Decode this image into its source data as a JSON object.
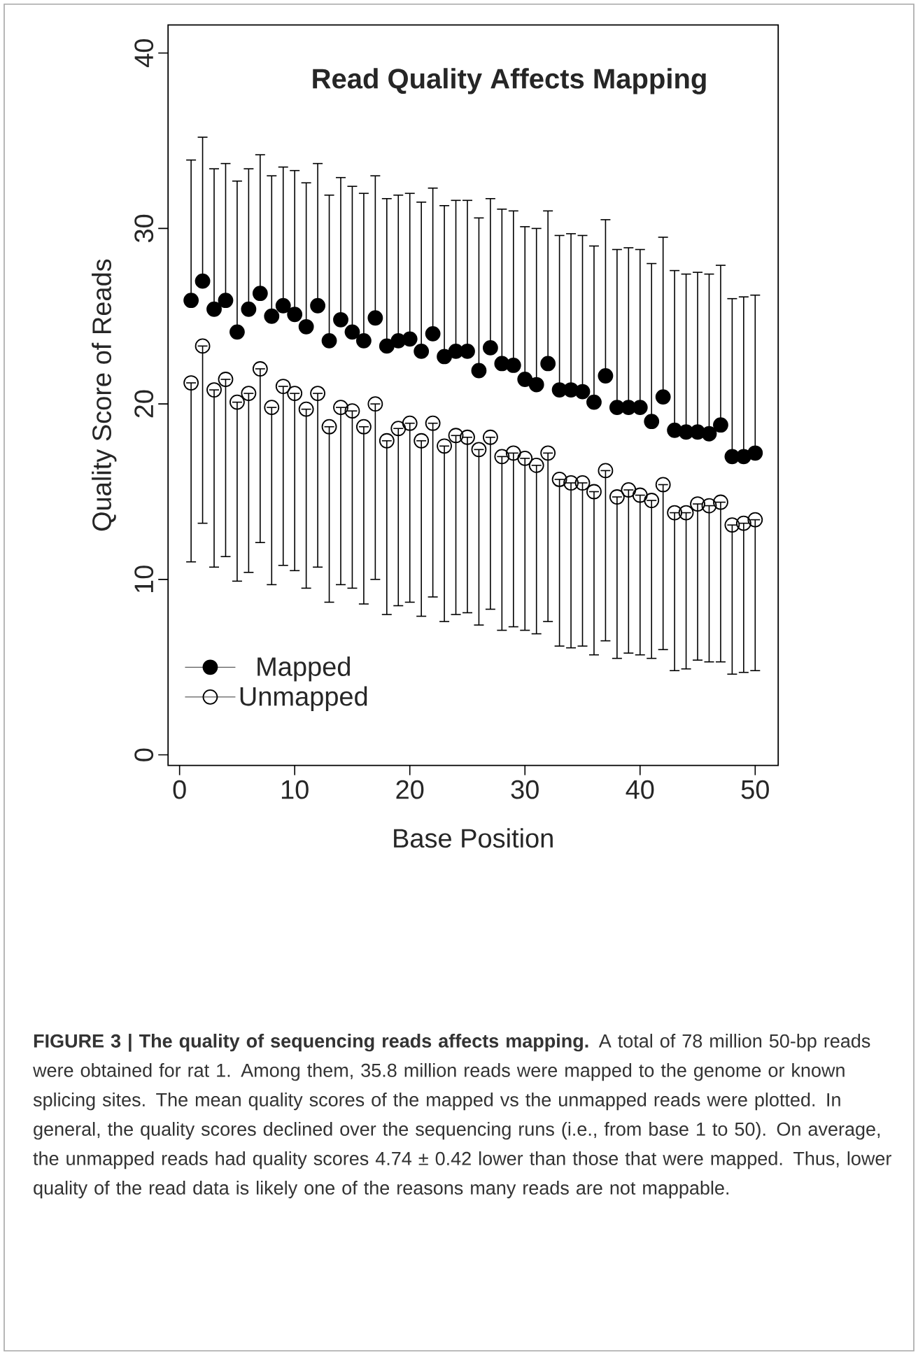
{
  "chart_data": {
    "type": "scatter",
    "title": "Read Quality Affects Mapping",
    "xlabel": "Base Position",
    "ylabel": "Quality Score of Reads",
    "x": [
      1,
      2,
      3,
      4,
      5,
      6,
      7,
      8,
      9,
      10,
      11,
      12,
      13,
      14,
      15,
      16,
      17,
      18,
      19,
      20,
      21,
      22,
      23,
      24,
      25,
      26,
      27,
      28,
      29,
      30,
      31,
      32,
      33,
      34,
      35,
      36,
      37,
      38,
      39,
      40,
      41,
      42,
      43,
      44,
      45,
      46,
      47,
      48,
      49,
      50
    ],
    "series": [
      {
        "name": "Mapped",
        "color": "#000000",
        "values": [
          25.9,
          27.0,
          25.4,
          25.9,
          24.1,
          25.4,
          26.3,
          25.0,
          25.6,
          25.1,
          24.4,
          25.6,
          23.6,
          24.8,
          24.1,
          23.6,
          24.9,
          23.3,
          23.6,
          23.7,
          23.0,
          24.0,
          22.7,
          23.0,
          23.0,
          21.9,
          23.2,
          22.3,
          22.2,
          21.4,
          21.1,
          22.3,
          20.8,
          20.8,
          20.7,
          20.1,
          21.6,
          19.8,
          19.8,
          19.8,
          19.0,
          20.4,
          18.5,
          18.4,
          18.4,
          18.3,
          18.8,
          17.0,
          17.0,
          17.2
        ],
        "errors": [
          [
            25.9,
            33.9
          ],
          [
            27.0,
            35.2
          ],
          [
            25.4,
            33.4
          ],
          [
            25.9,
            33.7
          ],
          [
            24.1,
            32.7
          ],
          [
            25.4,
            33.4
          ],
          [
            26.3,
            34.2
          ],
          [
            25.0,
            33.0
          ],
          [
            25.6,
            33.5
          ],
          [
            25.1,
            33.3
          ],
          [
            24.4,
            32.6
          ],
          [
            25.6,
            33.7
          ],
          [
            23.6,
            31.9
          ],
          [
            24.8,
            32.9
          ],
          [
            24.1,
            32.4
          ],
          [
            23.6,
            32.0
          ],
          [
            24.9,
            33.0
          ],
          [
            23.3,
            31.7
          ],
          [
            23.6,
            31.9
          ],
          [
            23.7,
            32.0
          ],
          [
            23.0,
            31.5
          ],
          [
            24.0,
            32.3
          ],
          [
            22.7,
            31.3
          ],
          [
            23.0,
            31.6
          ],
          [
            23.0,
            31.6
          ],
          [
            21.9,
            30.6
          ],
          [
            23.2,
            31.7
          ],
          [
            22.3,
            31.1
          ],
          [
            22.2,
            31.0
          ],
          [
            21.4,
            30.1
          ],
          [
            21.1,
            30.0
          ],
          [
            22.3,
            31.0
          ],
          [
            20.8,
            29.6
          ],
          [
            20.8,
            29.7
          ],
          [
            20.7,
            29.6
          ],
          [
            20.1,
            29.0
          ],
          [
            21.6,
            30.5
          ],
          [
            19.8,
            28.8
          ],
          [
            19.8,
            28.9
          ],
          [
            19.8,
            28.8
          ],
          [
            19.0,
            28.0
          ],
          [
            20.4,
            29.5
          ],
          [
            18.5,
            27.6
          ],
          [
            18.4,
            27.4
          ],
          [
            18.4,
            27.5
          ],
          [
            18.3,
            27.4
          ],
          [
            18.8,
            27.9
          ],
          [
            17.0,
            26.0
          ],
          [
            17.0,
            26.1
          ],
          [
            17.2,
            26.2
          ]
        ]
      },
      {
        "name": "Unmapped",
        "color": "#000000",
        "values": [
          21.2,
          23.3,
          20.8,
          21.4,
          20.1,
          20.6,
          22.0,
          19.8,
          21.0,
          20.6,
          19.7,
          20.6,
          18.7,
          19.8,
          19.6,
          18.7,
          20.0,
          17.9,
          18.6,
          18.9,
          17.9,
          18.9,
          17.6,
          18.2,
          18.1,
          17.4,
          18.1,
          17.0,
          17.2,
          16.9,
          16.5,
          17.2,
          15.7,
          15.5,
          15.5,
          15.0,
          16.2,
          14.7,
          15.1,
          14.8,
          14.5,
          15.4,
          13.8,
          13.8,
          14.3,
          14.2,
          14.4,
          13.1,
          13.2,
          13.4
        ],
        "errors": [
          [
            11.0,
            21.2
          ],
          [
            13.2,
            23.3
          ],
          [
            10.7,
            20.8
          ],
          [
            11.3,
            21.4
          ],
          [
            9.9,
            20.1
          ],
          [
            10.4,
            20.6
          ],
          [
            12.1,
            22.0
          ],
          [
            9.7,
            19.8
          ],
          [
            10.8,
            21.0
          ],
          [
            10.5,
            20.6
          ],
          [
            9.5,
            19.7
          ],
          [
            10.7,
            20.6
          ],
          [
            8.7,
            18.7
          ],
          [
            9.7,
            19.8
          ],
          [
            9.5,
            19.6
          ],
          [
            8.6,
            18.7
          ],
          [
            10.0,
            20.0
          ],
          [
            8.0,
            17.9
          ],
          [
            8.5,
            18.6
          ],
          [
            8.7,
            18.9
          ],
          [
            7.9,
            17.9
          ],
          [
            9.0,
            18.9
          ],
          [
            7.6,
            17.6
          ],
          [
            8.0,
            18.2
          ],
          [
            8.1,
            18.1
          ],
          [
            7.4,
            17.4
          ],
          [
            8.3,
            18.1
          ],
          [
            7.1,
            17.0
          ],
          [
            7.3,
            17.2
          ],
          [
            7.1,
            16.9
          ],
          [
            6.9,
            16.5
          ],
          [
            7.6,
            17.2
          ],
          [
            6.2,
            15.7
          ],
          [
            6.1,
            15.5
          ],
          [
            6.2,
            15.5
          ],
          [
            5.7,
            15.0
          ],
          [
            6.5,
            16.2
          ],
          [
            5.5,
            14.7
          ],
          [
            5.8,
            15.1
          ],
          [
            5.7,
            14.8
          ],
          [
            5.5,
            14.5
          ],
          [
            6.0,
            15.4
          ],
          [
            4.8,
            13.8
          ],
          [
            4.9,
            13.8
          ],
          [
            5.4,
            14.3
          ],
          [
            5.3,
            14.2
          ],
          [
            5.3,
            14.4
          ],
          [
            4.6,
            13.1
          ],
          [
            4.7,
            13.2
          ],
          [
            4.8,
            13.4
          ]
        ]
      }
    ],
    "xlim": [
      -1,
      52
    ],
    "ylim": [
      -0.6,
      41.6
    ],
    "xticks": [
      0,
      10,
      20,
      30,
      40,
      50
    ],
    "yticks": [
      0,
      10,
      20,
      30,
      40
    ],
    "marker": "circle",
    "legend": "bottom left",
    "grid": false,
    "annotations": [
      "**FIGURE 3 | The quality of sequencing reads affects mapping.** A total of 78 million 50-bp reads were obtained for rat 1. Among them, 35.8 million reads were mapped to the genome or known splicing sites. The mean quality scores of the mapped vs the unmapped reads were plotted. In general, the quality scores declined over the sequencing runs (i.e., from base 1 to 50). On average, the unmapped reads had quality scores 4.74 ± 0.42 lower than those that were mapped. Thus, lower quality of the read data is likely one of the reasons many reads are not mappable."
    ]
  }
}
